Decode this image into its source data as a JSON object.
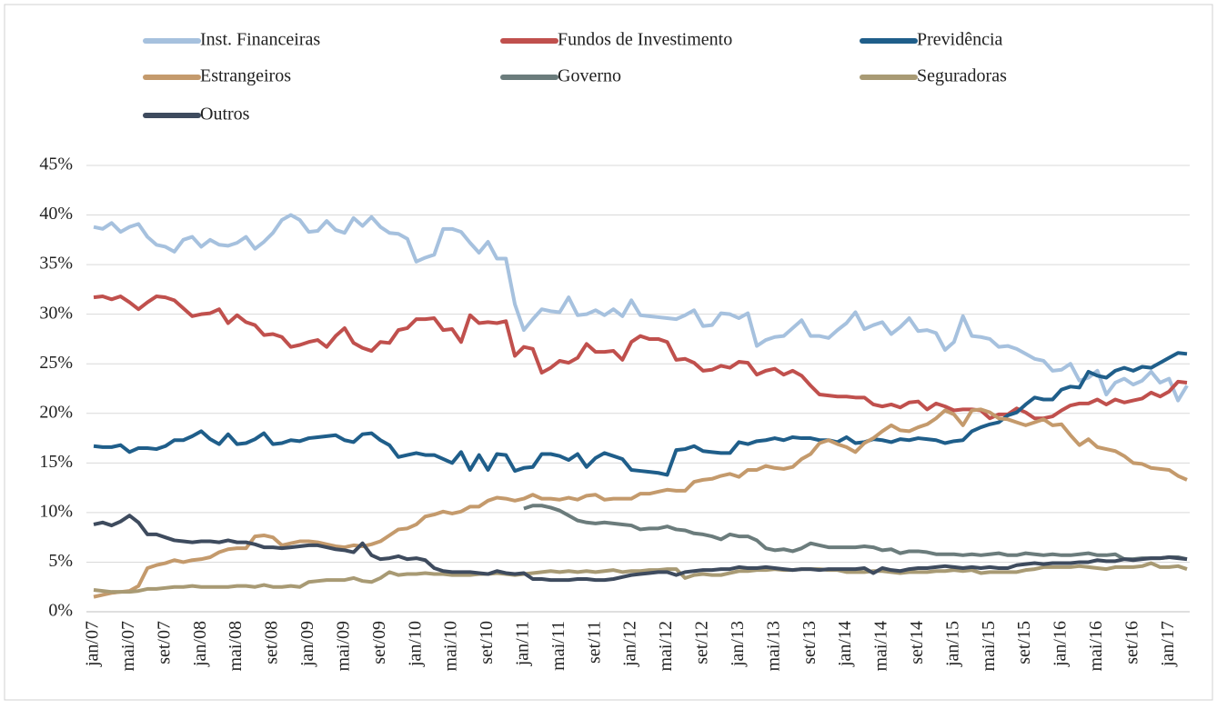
{
  "chart_data": {
    "type": "line",
    "categories": [
      "jan/07",
      null,
      null,
      null,
      "mai/07",
      null,
      null,
      null,
      "set/07",
      null,
      null,
      null,
      "jan/08",
      null,
      null,
      null,
      "mai/08",
      null,
      null,
      null,
      "set/08",
      null,
      null,
      null,
      "jan/09",
      null,
      null,
      null,
      "mai/09",
      null,
      null,
      null,
      "set/09",
      null,
      null,
      null,
      "jan/10",
      null,
      null,
      null,
      "mai/10",
      null,
      null,
      null,
      "set/10",
      null,
      null,
      null,
      "jan/11",
      null,
      null,
      null,
      "mai/11",
      null,
      null,
      null,
      "set/11",
      null,
      null,
      null,
      "jan/12",
      null,
      null,
      null,
      "mai/12",
      null,
      null,
      null,
      "set/12",
      null,
      null,
      null,
      "jan/13",
      null,
      null,
      null,
      "mai/13",
      null,
      null,
      null,
      "set/13",
      null,
      null,
      null,
      "jan/14",
      null,
      null,
      null,
      "mai/14",
      null,
      null,
      null,
      "set/14",
      null,
      null,
      null,
      "jan/15",
      null,
      null,
      null,
      "mai/15",
      null,
      null,
      null,
      "set/15",
      null,
      null,
      null,
      "jan/16",
      null,
      null,
      null,
      "mai/16",
      null,
      null,
      null,
      "set/16",
      null,
      null,
      null,
      "jan/17",
      null,
      null
    ],
    "ylim": [
      0,
      45
    ],
    "yticks": [
      {
        "value": 0,
        "label": "0%"
      },
      {
        "value": 5,
        "label": "5%"
      },
      {
        "value": 10,
        "label": "10%"
      },
      {
        "value": 15,
        "label": "15%"
      },
      {
        "value": 20,
        "label": "20%"
      },
      {
        "value": 25,
        "label": "25%"
      },
      {
        "value": 30,
        "label": "30%"
      },
      {
        "value": 35,
        "label": "35%"
      },
      {
        "value": 40,
        "label": "40%"
      },
      {
        "value": 45,
        "label": "45%"
      }
    ],
    "grid": true,
    "legend": "top",
    "series": [
      {
        "name": "Inst. Financeiras",
        "color": "#a6c1de",
        "values": [
          38.8,
          38.6,
          39.2,
          38.3,
          38.8,
          39.1,
          37.8,
          37.0,
          36.8,
          36.3,
          37.5,
          37.8,
          36.8,
          37.5,
          37.0,
          36.9,
          37.2,
          37.8,
          36.6,
          37.3,
          38.2,
          39.5,
          40.0,
          39.5,
          38.3,
          38.4,
          39.4,
          38.5,
          38.2,
          39.7,
          38.9,
          39.8,
          38.8,
          38.2,
          38.1,
          37.6,
          35.3,
          35.7,
          36.0,
          38.6,
          38.6,
          38.3,
          37.2,
          36.2,
          37.3,
          35.6,
          35.6,
          31.0,
          28.4,
          29.5,
          30.5,
          30.3,
          30.2,
          31.7,
          29.9,
          30.0,
          30.4,
          29.9,
          30.5,
          29.8,
          31.4,
          29.9,
          29.8,
          29.7,
          29.6,
          29.5,
          29.9,
          30.4,
          28.8,
          28.9,
          30.1,
          30.0,
          29.6,
          30.1,
          26.8,
          27.4,
          27.7,
          27.8,
          28.6,
          29.4,
          27.8,
          27.8,
          27.6,
          28.4,
          29.1,
          30.2,
          28.5,
          28.9,
          29.2,
          28.0,
          28.7,
          29.6,
          28.3,
          28.4,
          28.1,
          26.4,
          27.2,
          29.8,
          27.8,
          27.7,
          27.5,
          26.7,
          26.8,
          26.5,
          26.0,
          25.5,
          25.3,
          24.3,
          24.4,
          25.0,
          23.3,
          23.6,
          24.3,
          21.9,
          23.1,
          23.5,
          22.9,
          23.3,
          24.2,
          23.1,
          23.5,
          21.3,
          22.8
        ]
      },
      {
        "name": "Fundos de Investimento",
        "color": "#c0504d",
        "values": [
          31.7,
          31.8,
          31.5,
          31.8,
          31.2,
          30.5,
          31.2,
          31.8,
          31.7,
          31.4,
          30.6,
          29.8,
          30.0,
          30.1,
          30.5,
          29.1,
          29.9,
          29.2,
          28.9,
          27.9,
          28.0,
          27.7,
          26.7,
          26.9,
          27.2,
          27.4,
          26.7,
          27.8,
          28.6,
          27.1,
          26.6,
          26.3,
          27.2,
          27.1,
          28.4,
          28.6,
          29.5,
          29.5,
          29.6,
          28.4,
          28.5,
          27.2,
          29.9,
          29.1,
          29.2,
          29.1,
          29.3,
          25.8,
          26.7,
          26.5,
          24.1,
          24.6,
          25.3,
          25.1,
          25.6,
          27.0,
          26.2,
          26.2,
          26.3,
          25.4,
          27.2,
          27.8,
          27.5,
          27.5,
          27.2,
          25.4,
          25.5,
          25.1,
          24.3,
          24.4,
          24.8,
          24.6,
          25.2,
          25.1,
          23.9,
          24.3,
          24.5,
          23.9,
          24.3,
          23.8,
          22.8,
          21.9,
          21.8,
          21.7,
          21.7,
          21.6,
          21.6,
          20.9,
          20.7,
          20.9,
          20.6,
          21.1,
          21.2,
          20.4,
          21.0,
          20.7,
          20.3,
          20.4,
          20.4,
          20.3,
          19.5,
          19.9,
          19.9,
          20.5,
          20.1,
          19.5,
          19.5,
          19.7,
          20.3,
          20.8,
          21.0,
          21.0,
          21.4,
          20.9,
          21.4,
          21.1,
          21.3,
          21.5,
          22.1,
          21.7,
          22.2,
          23.2,
          23.1
        ]
      },
      {
        "name": "Previdência",
        "color": "#1f5e8a",
        "values": [
          16.7,
          16.6,
          16.6,
          16.8,
          16.1,
          16.5,
          16.5,
          16.4,
          16.7,
          17.3,
          17.3,
          17.7,
          18.2,
          17.4,
          16.9,
          17.9,
          16.9,
          17.0,
          17.4,
          18.0,
          16.9,
          17.0,
          17.3,
          17.2,
          17.5,
          17.6,
          17.7,
          17.8,
          17.3,
          17.1,
          17.9,
          18.0,
          17.3,
          16.8,
          15.6,
          15.8,
          16.0,
          15.8,
          15.8,
          15.4,
          15.0,
          16.1,
          14.3,
          15.8,
          14.3,
          15.9,
          15.8,
          14.2,
          14.5,
          14.6,
          15.9,
          15.9,
          15.7,
          15.3,
          15.9,
          14.6,
          15.5,
          16.0,
          15.7,
          15.4,
          14.3,
          14.2,
          14.1,
          14.0,
          13.8,
          16.3,
          16.4,
          16.7,
          16.2,
          16.1,
          16.0,
          16.0,
          17.1,
          16.9,
          17.2,
          17.3,
          17.5,
          17.3,
          17.6,
          17.5,
          17.5,
          17.3,
          17.3,
          17.1,
          17.6,
          17.0,
          17.1,
          17.4,
          17.3,
          17.1,
          17.4,
          17.3,
          17.5,
          17.4,
          17.3,
          17.0,
          17.2,
          17.3,
          18.2,
          18.6,
          18.9,
          19.1,
          19.8,
          20.1,
          20.9,
          21.6,
          21.4,
          21.4,
          22.4,
          22.7,
          22.6,
          24.2,
          23.8,
          23.6,
          24.3,
          24.6,
          24.3,
          24.7,
          24.6,
          25.1,
          25.6,
          26.1,
          26.0
        ]
      },
      {
        "name": "Estrangeiros",
        "color": "#c49a6c",
        "values": [
          1.5,
          1.7,
          1.9,
          2.0,
          2.1,
          2.6,
          4.4,
          4.7,
          4.9,
          5.2,
          5.0,
          5.2,
          5.3,
          5.5,
          6.0,
          6.3,
          6.4,
          6.4,
          7.6,
          7.7,
          7.5,
          6.7,
          6.9,
          7.1,
          7.1,
          7.0,
          6.8,
          6.6,
          6.5,
          6.7,
          6.6,
          6.8,
          7.1,
          7.7,
          8.3,
          8.4,
          8.8,
          9.6,
          9.8,
          10.1,
          9.9,
          10.1,
          10.6,
          10.6,
          11.2,
          11.5,
          11.4,
          11.2,
          11.4,
          11.8,
          11.4,
          11.4,
          11.3,
          11.5,
          11.3,
          11.7,
          11.8,
          11.3,
          11.4,
          11.4,
          11.4,
          11.9,
          11.9,
          12.1,
          12.3,
          12.2,
          12.2,
          13.1,
          13.3,
          13.4,
          13.7,
          13.9,
          13.6,
          14.3,
          14.3,
          14.7,
          14.5,
          14.4,
          14.6,
          15.4,
          15.9,
          17.0,
          17.3,
          16.9,
          16.6,
          16.1,
          17.0,
          17.5,
          18.2,
          18.8,
          18.3,
          18.2,
          18.6,
          18.9,
          19.5,
          20.3,
          19.9,
          18.8,
          20.3,
          20.4,
          20.1,
          19.5,
          19.4,
          19.1,
          18.8,
          19.1,
          19.4,
          18.8,
          18.9,
          17.8,
          16.8,
          17.4,
          16.6,
          16.4,
          16.2,
          15.7,
          15.0,
          14.9,
          14.5,
          14.4,
          14.3,
          13.7,
          13.3
        ]
      },
      {
        "name": "Governo",
        "color": "#6b7c7c",
        "values": [
          null,
          null,
          null,
          null,
          null,
          null,
          null,
          null,
          null,
          null,
          null,
          null,
          null,
          null,
          null,
          null,
          null,
          null,
          null,
          null,
          null,
          null,
          null,
          null,
          null,
          null,
          null,
          null,
          null,
          null,
          null,
          null,
          null,
          null,
          null,
          null,
          null,
          null,
          null,
          null,
          null,
          null,
          null,
          null,
          null,
          null,
          null,
          null,
          10.4,
          10.7,
          10.7,
          10.5,
          10.2,
          9.7,
          9.2,
          9.0,
          8.9,
          9.0,
          8.9,
          8.8,
          8.7,
          8.3,
          8.4,
          8.4,
          8.6,
          8.3,
          8.2,
          7.9,
          7.8,
          7.6,
          7.3,
          7.8,
          7.6,
          7.6,
          7.2,
          6.4,
          6.2,
          6.3,
          6.1,
          6.4,
          6.9,
          6.7,
          6.5,
          6.5,
          6.5,
          6.5,
          6.6,
          6.5,
          6.2,
          6.3,
          5.9,
          6.1,
          6.1,
          6.0,
          5.8,
          5.8,
          5.8,
          5.7,
          5.8,
          5.7,
          5.8,
          5.9,
          5.7,
          5.7,
          5.9,
          5.8,
          5.7,
          5.8,
          5.7,
          5.7,
          5.8,
          5.9,
          5.7,
          5.7,
          5.8,
          5.3,
          5.3,
          5.4,
          5.4,
          5.4,
          5.5,
          5.5,
          5.3
        ]
      },
      {
        "name": "Seguradoras",
        "color": "#a89a74",
        "values": [
          2.2,
          2.1,
          2.0,
          2.0,
          2.0,
          2.1,
          2.3,
          2.3,
          2.4,
          2.5,
          2.5,
          2.6,
          2.5,
          2.5,
          2.5,
          2.5,
          2.6,
          2.6,
          2.5,
          2.7,
          2.5,
          2.5,
          2.6,
          2.5,
          3.0,
          3.1,
          3.2,
          3.2,
          3.2,
          3.4,
          3.1,
          3.0,
          3.4,
          4.0,
          3.7,
          3.8,
          3.8,
          3.9,
          3.8,
          3.8,
          3.7,
          3.7,
          3.7,
          3.8,
          3.8,
          3.9,
          3.8,
          3.7,
          3.8,
          3.9,
          4.0,
          4.1,
          4.0,
          4.1,
          4.0,
          4.1,
          4.0,
          4.1,
          4.2,
          4.0,
          4.1,
          4.1,
          4.2,
          4.2,
          4.3,
          4.3,
          3.4,
          3.7,
          3.8,
          3.7,
          3.7,
          3.9,
          4.1,
          4.1,
          4.2,
          4.2,
          4.3,
          4.2,
          4.2,
          4.3,
          4.3,
          4.3,
          4.2,
          4.2,
          4.0,
          4.0,
          4.0,
          4.1,
          4.1,
          4.0,
          3.9,
          4.0,
          4.0,
          4.0,
          4.1,
          4.1,
          4.2,
          4.1,
          4.2,
          3.9,
          4.0,
          4.0,
          4.0,
          4.0,
          4.2,
          4.3,
          4.5,
          4.5,
          4.5,
          4.5,
          4.6,
          4.5,
          4.4,
          4.3,
          4.5,
          4.5,
          4.5,
          4.6,
          4.9,
          4.5,
          4.5,
          4.6,
          4.3
        ]
      },
      {
        "name": "Outros",
        "color": "#3e4b5e",
        "values": [
          8.8,
          9.0,
          8.7,
          9.1,
          9.7,
          9.0,
          7.8,
          7.8,
          7.5,
          7.2,
          7.1,
          7.0,
          7.1,
          7.1,
          7.0,
          7.2,
          7.0,
          7.0,
          6.8,
          6.5,
          6.5,
          6.4,
          6.5,
          6.6,
          6.7,
          6.7,
          6.5,
          6.3,
          6.2,
          6.0,
          6.9,
          5.7,
          5.3,
          5.4,
          5.6,
          5.3,
          5.4,
          5.2,
          4.4,
          4.1,
          4.0,
          4.0,
          4.0,
          3.9,
          3.8,
          4.1,
          3.9,
          3.8,
          3.9,
          3.3,
          3.3,
          3.2,
          3.2,
          3.2,
          3.3,
          3.3,
          3.2,
          3.2,
          3.3,
          3.5,
          3.7,
          3.8,
          3.9,
          4.0,
          4.0,
          3.7,
          4.0,
          4.1,
          4.2,
          4.2,
          4.3,
          4.3,
          4.5,
          4.4,
          4.4,
          4.5,
          4.4,
          4.3,
          4.2,
          4.3,
          4.3,
          4.2,
          4.3,
          4.3,
          4.3,
          4.3,
          4.4,
          3.9,
          4.4,
          4.2,
          4.1,
          4.3,
          4.4,
          4.4,
          4.5,
          4.6,
          4.5,
          4.4,
          4.5,
          4.4,
          4.5,
          4.4,
          4.4,
          4.7,
          4.8,
          4.9,
          4.8,
          4.9,
          4.9,
          4.9,
          5.0,
          5.0,
          5.2,
          5.1,
          5.1,
          5.3,
          5.2,
          5.3,
          5.4,
          5.4,
          5.5,
          5.4,
          5.3
        ]
      }
    ]
  }
}
